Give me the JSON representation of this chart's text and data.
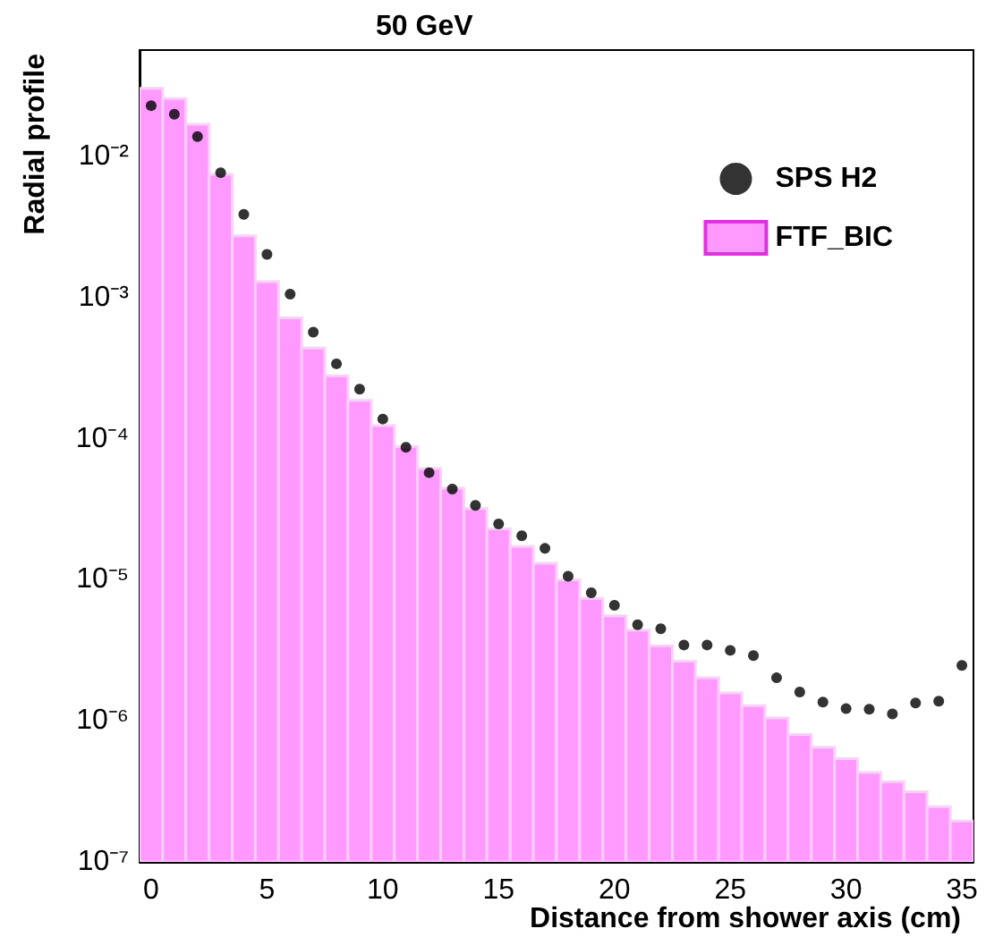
{
  "chart_data": {
    "type": "histogram",
    "title": "50 GeV",
    "xlabel": "Distance from shower axis (cm)",
    "ylabel": "Radial profile",
    "bins": [
      -0.5,
      0.5,
      1.5,
      2.5,
      3.5,
      4.5,
      5.5,
      6.5,
      7.5,
      8.5,
      9.5,
      10.5,
      11.5,
      12.5,
      13.5,
      14.5,
      15.5,
      16.5,
      17.5,
      18.5,
      19.5,
      20.5,
      21.5,
      22.5,
      23.5,
      24.5,
      25.5,
      26.5,
      27.5,
      28.5,
      29.5,
      30.5,
      31.5,
      32.5,
      33.5,
      34.5,
      35.5
    ],
    "series": [
      {
        "name": "SPS H2",
        "type": "scatter",
        "color": "#000000",
        "marker": "circle",
        "x": [
          0,
          1,
          2,
          3,
          4,
          5,
          6,
          7,
          8,
          9,
          10,
          11,
          12,
          13,
          14,
          15,
          16,
          17,
          18,
          19,
          20,
          21,
          22,
          23,
          24,
          25,
          26,
          27,
          28,
          29,
          30,
          31,
          32,
          33,
          34,
          35
        ],
        "values": [
          0.023,
          0.02,
          0.0139,
          0.0077,
          0.0039,
          0.00203,
          0.00106,
          0.00057,
          0.00034,
          0.000225,
          0.000138,
          8.7e-05,
          5.75e-05,
          4.4e-05,
          3.37e-05,
          2.49e-05,
          2.05e-05,
          1.67e-05,
          1.06e-05,
          8.1e-06,
          6.6e-06,
          4.8e-06,
          4.5e-06,
          3.45e-06,
          3.45e-06,
          3.16e-06,
          2.9e-06,
          2.02e-06,
          1.6e-06,
          1.36e-06,
          1.22e-06,
          1.21e-06,
          1.12e-06,
          1.34e-06,
          1.38e-06,
          2.47e-06
        ]
      },
      {
        "name": "FTF_BIC",
        "color": "#ff99ff",
        "values": [
          0.0305,
          0.0258,
          0.017,
          0.0075,
          0.00275,
          0.0013,
          0.00072,
          0.00044,
          0.00028,
          0.000187,
          0.000124,
          8.8e-05,
          6.15e-05,
          4.47e-05,
          3.2e-05,
          2.3e-05,
          1.72e-05,
          1.31e-05,
          1e-05,
          7.4e-06,
          5.56e-06,
          4.4e-06,
          3.41e-06,
          2.65e-06,
          2.02e-06,
          1.58e-06,
          1.28e-06,
          1.05e-06,
          8e-07,
          6.5e-07,
          5.4e-07,
          4.3e-07,
          3.7e-07,
          3.14e-07,
          2.46e-07,
          1.95e-07
        ]
      }
    ],
    "log": "y",
    "xlim": [
      -0.5,
      35.5
    ],
    "xticks": [
      0,
      5,
      10,
      15,
      20,
      25,
      30,
      35
    ],
    "ylim": [
      1e-07,
      0.057
    ],
    "yticks": [
      {
        "value": 1e-07,
        "label": "10⁻⁷"
      },
      {
        "value": 1e-06,
        "label": "10⁻⁶"
      },
      {
        "value": 1e-05,
        "label": "10⁻⁵"
      },
      {
        "value": 0.0001,
        "label": "10⁻⁴"
      },
      {
        "value": 0.001,
        "label": "10⁻³"
      },
      {
        "value": 0.01,
        "label": "10⁻²"
      }
    ],
    "grid": false,
    "legend": "top right"
  }
}
